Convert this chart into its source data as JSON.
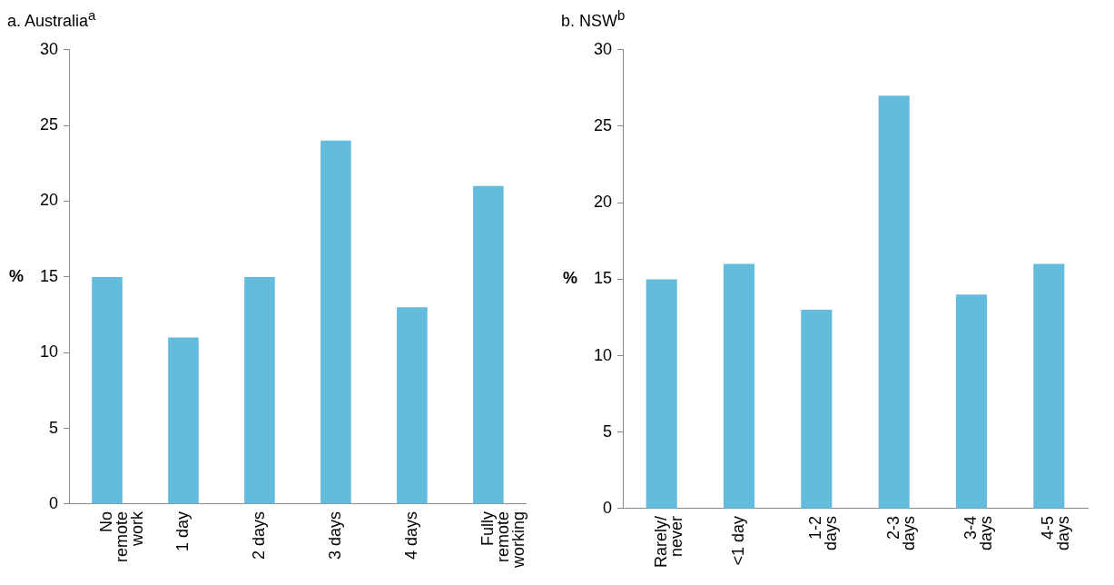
{
  "chart_data": [
    {
      "type": "bar",
      "title": "a. Australia$^{a}$",
      "ylabel": "%",
      "categories": [
        "No\nremote\nwork",
        "1 day",
        "2 days",
        "3 days",
        "4 days",
        "Fully\nremote\nworking"
      ],
      "values": [
        15,
        11,
        15,
        24,
        13,
        21
      ],
      "color": "#63bcdb",
      "ylim": [
        0,
        30
      ],
      "yticks": [
        0,
        5,
        10,
        15,
        20,
        25,
        30
      ],
      "grid": false,
      "legend": false
    },
    {
      "type": "bar",
      "title": "b. NSW$^{b}$",
      "ylabel": "%",
      "categories": [
        "Rarely/\nnever",
        "<1 day",
        "1-2\ndays",
        "2-3\ndays",
        "3-4\ndays",
        "4-5\ndays"
      ],
      "values": [
        15,
        16,
        13,
        27,
        14,
        16
      ],
      "color": "#63bcdb",
      "ylim": [
        0,
        30
      ],
      "yticks": [
        0,
        5,
        10,
        15,
        20,
        25,
        30
      ],
      "grid": false,
      "legend": false
    }
  ]
}
